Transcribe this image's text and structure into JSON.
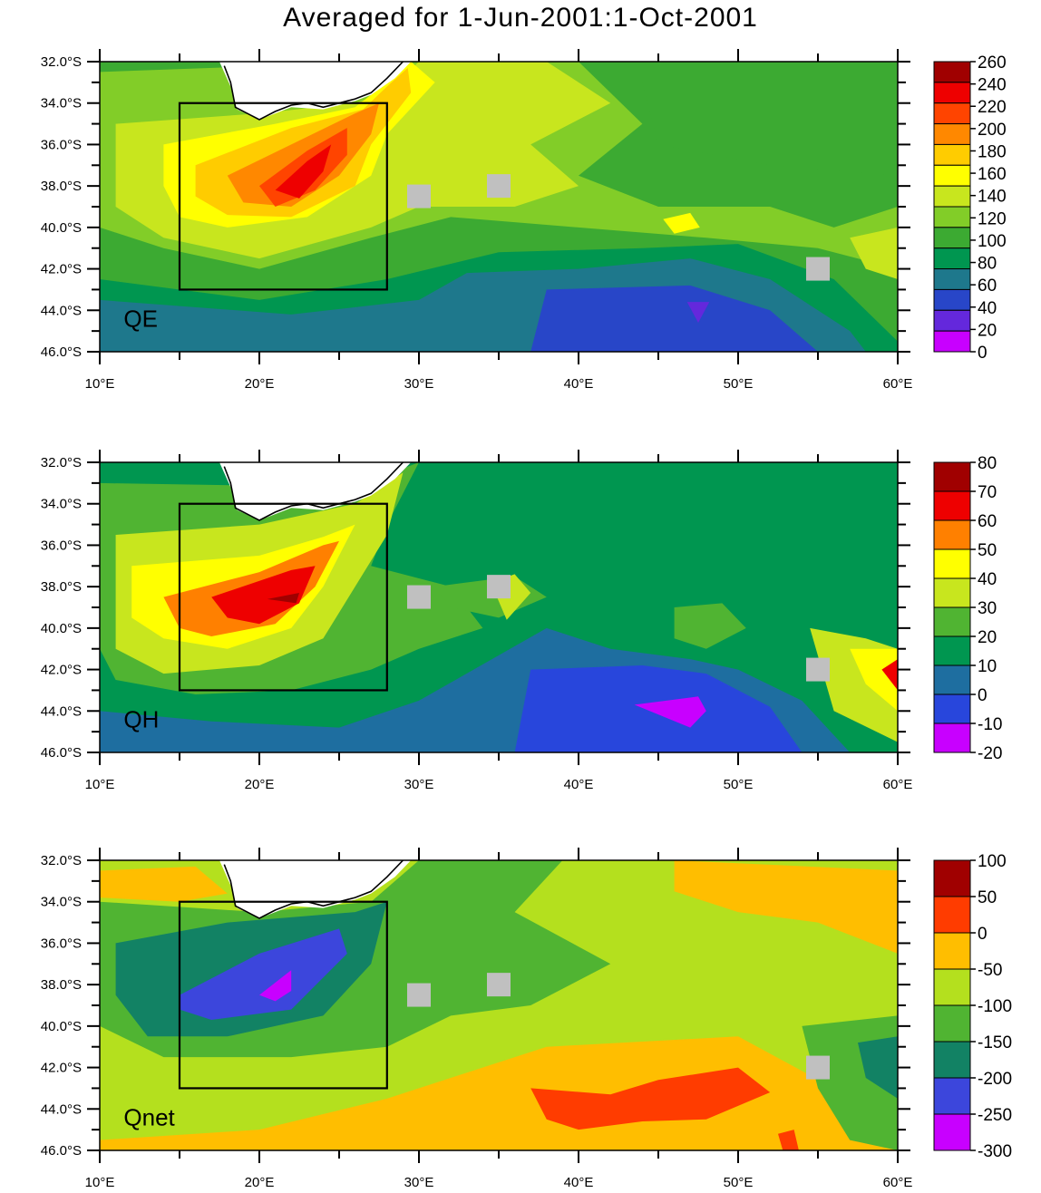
{
  "title": "Averaged for 1-Jun-2001:1-Oct-2001",
  "map": {
    "lon_range": [
      10,
      60
    ],
    "lat_range": [
      -46,
      -32
    ],
    "x_ticks": [
      "10°E",
      "20°E",
      "30°E",
      "40°E",
      "50°E",
      "60°E"
    ],
    "x_tick_values": [
      10,
      20,
      30,
      40,
      50,
      60
    ],
    "y_ticks": [
      "32.0°S",
      "34.0°S",
      "36.0°S",
      "38.0°S",
      "40.0°S",
      "42.0°S",
      "44.0°S",
      "46.0°S"
    ],
    "y_tick_values": [
      -32,
      -34,
      -36,
      -38,
      -40,
      -42,
      -44,
      -46
    ],
    "region_box": {
      "lon": [
        15,
        28
      ],
      "lat": [
        -43,
        -34
      ]
    },
    "grey_markers": [
      {
        "lon": 30,
        "lat": -38.5
      },
      {
        "lon": 35,
        "lat": -38
      },
      {
        "lon": 55,
        "lat": -42
      }
    ],
    "land_color": "#ffffff",
    "marker_color": "#c0c0c0"
  },
  "panels": [
    {
      "label": "QE",
      "background_color": "#1e9a3c",
      "levels": [
        "260",
        "240",
        "220",
        "200",
        "180",
        "160",
        "140",
        "120",
        "100",
        "80",
        "60",
        "40",
        "20",
        "0"
      ],
      "colors": [
        "#a00000",
        "#ee0000",
        "#ff4400",
        "#ff8800",
        "#ffcc00",
        "#ffff00",
        "#c8e61e",
        "#82cd28",
        "#3caa32",
        "#009650",
        "#1e788c",
        "#2846c8",
        "#6428dc",
        "#c800ff"
      ]
    },
    {
      "label": "QH",
      "background_color": "#009650",
      "levels": [
        "80",
        "70",
        "60",
        "50",
        "40",
        "30",
        "20",
        "10",
        "0",
        "-10",
        "-20"
      ],
      "colors": [
        "#a00000",
        "#ee0000",
        "#ff8000",
        "#ffff00",
        "#c8e61e",
        "#50b432",
        "#009650",
        "#1e6ea0",
        "#2846dc",
        "#c800ff"
      ]
    },
    {
      "label": "Qnet",
      "background_color": "#b4e01e",
      "levels": [
        "100",
        "50",
        "0",
        "-50",
        "-100",
        "-150",
        "-200",
        "-250",
        "-300"
      ],
      "colors": [
        "#a00000",
        "#ff3c00",
        "#ffbe00",
        "#b4e01e",
        "#50b432",
        "#128264",
        "#3c46dc",
        "#c800ff"
      ]
    }
  ]
}
